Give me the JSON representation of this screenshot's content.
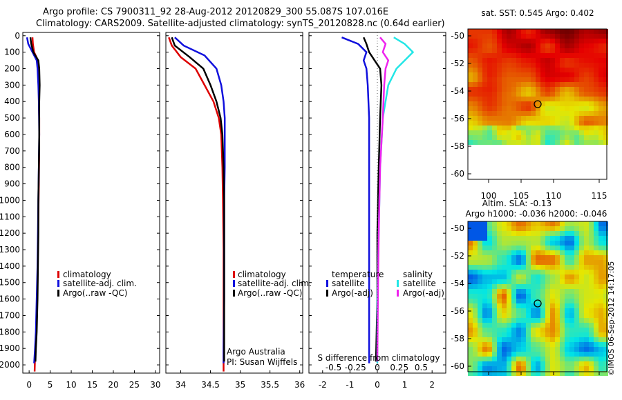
{
  "header": {
    "line1": "Argo profile: CS 7900311_92 28-Aug-2012 20120829_300 55.087S 107.016E",
    "line2": "Climatology: CARS2009. Satellite-adjusted climatology: synTS_20120828.nc (0.64d earlier)"
  },
  "colors": {
    "climatology": "#dd0000",
    "satellite": "#1010dd",
    "argo": "#000000",
    "satellite_salinity": "#22e6e6",
    "argo_salinity": "#ee22ee"
  },
  "chart_data": [
    {
      "type": "line",
      "panel": "temperature",
      "ylim": [
        2050,
        -20
      ],
      "y_ticks": [
        0,
        100,
        200,
        300,
        400,
        500,
        600,
        700,
        800,
        900,
        1000,
        1100,
        1200,
        1300,
        1400,
        1500,
        1600,
        1700,
        1800,
        1900,
        2000
      ],
      "xlim": [
        -1.5,
        31
      ],
      "x_ticks": [
        0,
        5,
        10,
        15,
        20,
        25,
        30
      ],
      "legend": [
        "climatology",
        "satellite-adj. clim.",
        "Argo(..raw -QC)"
      ],
      "series": [
        {
          "name": "climatology",
          "x": [
            0.8,
            0.9,
            1.2,
            2.1,
            2.2,
            2.3,
            2.3,
            2.4,
            2.4,
            2.3,
            2.2,
            2.1,
            2.0,
            1.8,
            1.6,
            1.4,
            1.3
          ],
          "y": [
            10,
            50,
            100,
            150,
            200,
            300,
            400,
            500,
            700,
            900,
            1100,
            1300,
            1500,
            1700,
            1850,
            1950,
            2040
          ]
        },
        {
          "name": "satellite-adj. clim.",
          "x": [
            -0.5,
            -0.2,
            0.8,
            1.8,
            2.0,
            2.2,
            2.3,
            2.4,
            2.3,
            2.2,
            2.1,
            2.0,
            1.8,
            1.6,
            1.4,
            1.2
          ],
          "y": [
            10,
            50,
            100,
            150,
            200,
            300,
            400,
            600,
            800,
            1000,
            1200,
            1400,
            1600,
            1800,
            1900,
            1990
          ]
        },
        {
          "name": "Argo(..raw -QC)",
          "x": [
            0.3,
            0.5,
            1.0,
            2.2,
            2.4,
            2.5,
            2.4,
            2.4,
            2.3,
            2.2,
            2.2,
            2.1,
            2.0,
            1.8,
            1.6,
            1.5
          ],
          "y": [
            10,
            50,
            100,
            150,
            200,
            300,
            400,
            600,
            800,
            1000,
            1200,
            1400,
            1600,
            1800,
            1900,
            1980
          ]
        }
      ]
    },
    {
      "type": "line",
      "panel": "salinity",
      "ylim": [
        2050,
        -20
      ],
      "xlim": [
        33.75,
        36.05
      ],
      "x_ticks": [
        "34",
        "34.5",
        "35",
        "35.5",
        "36"
      ],
      "legend": [
        "climatology",
        "satellite-adj. clim.",
        "Argo(..raw -QC)"
      ],
      "series": [
        {
          "name": "climatology",
          "x": [
            33.8,
            33.85,
            34.0,
            34.25,
            34.4,
            34.55,
            34.64,
            34.68,
            34.7,
            34.71,
            34.72,
            34.72,
            34.72,
            34.72
          ],
          "y": [
            10,
            60,
            130,
            200,
            300,
            400,
            500,
            600,
            800,
            1000,
            1300,
            1600,
            1900,
            2040
          ]
        },
        {
          "name": "satellite-adj. clim.",
          "x": [
            33.9,
            34.05,
            34.4,
            34.6,
            34.68,
            34.72,
            34.74,
            34.74,
            34.74,
            34.73,
            34.73,
            34.73,
            34.72,
            34.72
          ],
          "y": [
            10,
            60,
            120,
            200,
            300,
            400,
            500,
            600,
            800,
            1000,
            1300,
            1600,
            1900,
            1990
          ]
        },
        {
          "name": "Argo(..raw -QC)",
          "x": [
            33.85,
            33.9,
            34.15,
            34.38,
            34.5,
            34.6,
            34.67,
            34.7,
            34.72,
            34.73,
            34.73,
            34.73,
            34.73,
            34.73
          ],
          "y": [
            10,
            60,
            130,
            200,
            300,
            400,
            500,
            600,
            800,
            1000,
            1300,
            1600,
            1900,
            1980
          ]
        }
      ],
      "annotation": [
        "Argo Australia",
        "PI: Susan Wijffels"
      ]
    },
    {
      "type": "line",
      "panel": "difference",
      "ylim": [
        2050,
        -20
      ],
      "xlim": [
        -2.5,
        2.5
      ],
      "x_ticks": [
        "-2",
        "-1",
        "0",
        "1",
        "2"
      ],
      "x_ticks_bottom": [
        "-0.5",
        "-0.25",
        "0",
        "0.25",
        "0.5"
      ],
      "xlabel_bottom": "S difference from climatology",
      "legend_temperature": {
        "title": "temperature",
        "items": [
          "satellite",
          "Argo(-adj)"
        ]
      },
      "legend_salinity": {
        "title": "salinity",
        "items": [
          "satellite",
          "Argo(-adj)"
        ]
      },
      "series": [
        {
          "name": "temperature satellite",
          "x": [
            -1.3,
            -0.7,
            -0.4,
            -0.5,
            -0.4,
            -0.35,
            -0.3,
            -0.3,
            -0.3,
            -0.3,
            -0.3
          ],
          "y": [
            10,
            50,
            100,
            150,
            200,
            300,
            500,
            800,
            1200,
            1600,
            1990
          ]
        },
        {
          "name": "temperature Argo(-adj)",
          "x": [
            -0.5,
            -0.4,
            -0.3,
            -0.1,
            0.1,
            0.15,
            0.1,
            0.05,
            0.0,
            0.0,
            -0.05
          ],
          "y": [
            10,
            50,
            100,
            150,
            200,
            300,
            500,
            800,
            1200,
            1600,
            1980
          ]
        },
        {
          "name": "salinity satellite",
          "x": [
            0.6,
            1.0,
            1.3,
            1.0,
            0.7,
            0.4,
            0.2,
            0.1,
            0.05,
            0.0,
            0.0
          ],
          "y": [
            10,
            50,
            100,
            150,
            200,
            300,
            500,
            800,
            1200,
            1600,
            1990
          ]
        },
        {
          "name": "salinity Argo(-adj)",
          "x": [
            0.1,
            0.3,
            0.2,
            0.4,
            0.3,
            0.25,
            0.2,
            0.1,
            0.05,
            0.02,
            0.0
          ],
          "y": [
            10,
            50,
            100,
            150,
            200,
            300,
            500,
            800,
            1200,
            1600,
            1980
          ]
        }
      ]
    },
    {
      "type": "heatmap",
      "panel": "sst-map",
      "title": "sat. SST: 0.545 Argo: 0.402",
      "y_ticks": [
        "-50",
        "-52",
        "-54",
        "-56",
        "-58",
        "-60"
      ],
      "x_ticks": [
        "100",
        "105",
        "110",
        "115"
      ]
    },
    {
      "type": "heatmap",
      "panel": "sla-map",
      "title_line1": "Altim. SLA: -0.13",
      "title_line2": "Argo h1000: -0.036 h2000: -0.046",
      "y_ticks": [
        "-50",
        "-52",
        "-54",
        "-56",
        "-58",
        "-60"
      ]
    }
  ],
  "credit": "©IMOS 06-Sep-2012 14:17:05"
}
